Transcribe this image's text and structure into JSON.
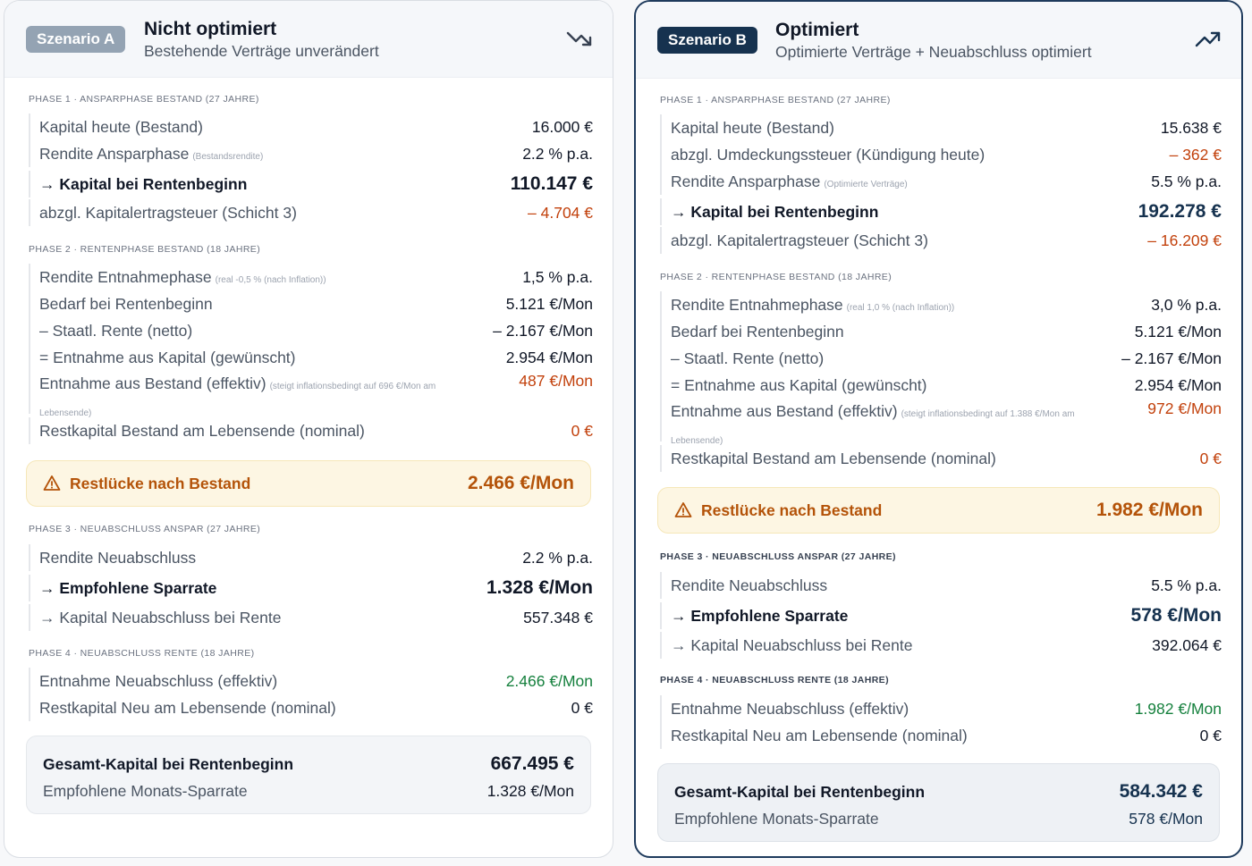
{
  "scenario_a": {
    "badge": "Szenario A",
    "title": "Nicht optimiert",
    "subtitle": "Bestehende Verträge unverändert",
    "trend_icon": "trending-down-icon",
    "phase1": {
      "heading": "Phase 1 · Ansparphase Bestand (27 Jahre)",
      "kapital_heute_label": "Kapital heute (Bestand)",
      "kapital_heute_value": "16.000 €",
      "rendite_label": "Rendite Ansparphase",
      "rendite_note": "(Bestandsrendite)",
      "rendite_value": "2.2 % p.a.",
      "kapital_rente_label": "→ Kapital bei Rentenbeginn",
      "kapital_rente_value": "110.147 €",
      "steuer_label": "abzgl. Kapitalertragsteuer (Schicht 3)",
      "steuer_value": "– 4.704 €"
    },
    "phase2": {
      "heading": "Phase 2 · Rentenphase Bestand (18 Jahre)",
      "rendite_label": "Rendite Entnahmephase",
      "rendite_note": "(real -0,5 % (nach Inflation))",
      "rendite_value": "1,5 % p.a.",
      "bedarf_label": "Bedarf bei Rentenbeginn",
      "bedarf_value": "5.121 €/Mon",
      "rente_label": "– Staatl. Rente (netto)",
      "rente_value": "– 2.167 €/Mon",
      "entnahme_label": "= Entnahme aus Kapital (gewünscht)",
      "entnahme_value": "2.954 €/Mon",
      "effektiv_label": "Entnahme aus Bestand (effektiv)",
      "effektiv_note": "(steigt inflationsbedingt auf 696 €/Mon am Lebensende)",
      "effektiv_value": "487 €/Mon",
      "restkapital_label": "Restkapital Bestand am Lebensende (nominal)",
      "restkapital_value": "0 €"
    },
    "gap": {
      "label": "Restlücke nach Bestand",
      "value": "2.466 €/Mon",
      "icon": "warning-icon"
    },
    "phase3": {
      "heading": "Phase 3 · Neuabschluss Anspar (27 Jahre)",
      "rendite_label": "Rendite Neuabschluss",
      "rendite_value": "2.2 % p.a.",
      "sparrate_label": "→ Empfohlene Sparrate",
      "sparrate_value": "1.328 €/Mon",
      "kapital_label": "→ Kapital Neuabschluss bei Rente",
      "kapital_value": "557.348 €"
    },
    "phase4": {
      "heading": "Phase 4 · Neuabschluss Rente (18 Jahre)",
      "entnahme_label": "Entnahme Neuabschluss (effektiv)",
      "entnahme_value": "2.466 €/Mon",
      "restkapital_label": "Restkapital Neu am Lebensende (nominal)",
      "restkapital_value": "0 €"
    },
    "total": {
      "kapital_label": "Gesamt-Kapital bei Rentenbeginn",
      "kapital_value": "667.495 €",
      "sparrate_label": "Empfohlene Monats-Sparrate",
      "sparrate_value": "1.328 €/Mon"
    }
  },
  "scenario_b": {
    "badge": "Szenario B",
    "title": "Optimiert",
    "subtitle": "Optimierte Verträge + Neuabschluss optimiert",
    "trend_icon": "trending-up-icon",
    "phase1": {
      "heading": "Phase 1 · Ansparphase Bestand (27 Jahre)",
      "kapital_heute_label": "Kapital heute (Bestand)",
      "kapital_heute_value": "15.638 €",
      "umdeckung_label": "abzgl. Umdeckungssteuer (Kündigung heute)",
      "umdeckung_value": "– 362 €",
      "rendite_label": "Rendite Ansparphase",
      "rendite_note": "(Optimierte Verträge)",
      "rendite_value": "5.5 % p.a.",
      "kapital_rente_label": "→ Kapital bei Rentenbeginn",
      "kapital_rente_value": "192.278 €",
      "steuer_label": "abzgl. Kapitalertragsteuer (Schicht 3)",
      "steuer_value": "– 16.209 €"
    },
    "phase2": {
      "heading": "Phase 2 · Rentenphase Bestand (18 Jahre)",
      "rendite_label": "Rendite Entnahmephase",
      "rendite_note": "(real 1,0 % (nach Inflation))",
      "rendite_value": "3,0 % p.a.",
      "bedarf_label": "Bedarf bei Rentenbeginn",
      "bedarf_value": "5.121 €/Mon",
      "rente_label": "– Staatl. Rente (netto)",
      "rente_value": "– 2.167 €/Mon",
      "entnahme_label": "= Entnahme aus Kapital (gewünscht)",
      "entnahme_value": "2.954 €/Mon",
      "effektiv_label": "Entnahme aus Bestand (effektiv)",
      "effektiv_note": "(steigt inflationsbedingt auf 1.388 €/Mon am Lebensende)",
      "effektiv_value": "972 €/Mon",
      "restkapital_label": "Restkapital Bestand am Lebensende (nominal)",
      "restkapital_value": "0 €"
    },
    "gap": {
      "label": "Restlücke nach Bestand",
      "value": "1.982 €/Mon",
      "icon": "warning-icon"
    },
    "phase3": {
      "heading": "Phase 3 · Neuabschluss Anspar (27 Jahre)",
      "rendite_label": "Rendite Neuabschluss",
      "rendite_value": "5.5 % p.a.",
      "sparrate_label": "→ Empfohlene Sparrate",
      "sparrate_value": "578 €/Mon",
      "kapital_label": "→ Kapital Neuabschluss bei Rente",
      "kapital_value": "392.064 €"
    },
    "phase4": {
      "heading": "Phase 4 · Neuabschluss Rente (18 Jahre)",
      "entnahme_label": "Entnahme Neuabschluss (effektiv)",
      "entnahme_value": "1.982 €/Mon",
      "restkapital_label": "Restkapital Neu am Lebensende (nominal)",
      "restkapital_value": "0 €"
    },
    "total": {
      "kapital_label": "Gesamt-Kapital bei Rentenbeginn",
      "kapital_value": "584.342 €",
      "sparrate_label": "Empfohlene Monats-Sparrate",
      "sparrate_value": "578 €/Mon"
    }
  }
}
